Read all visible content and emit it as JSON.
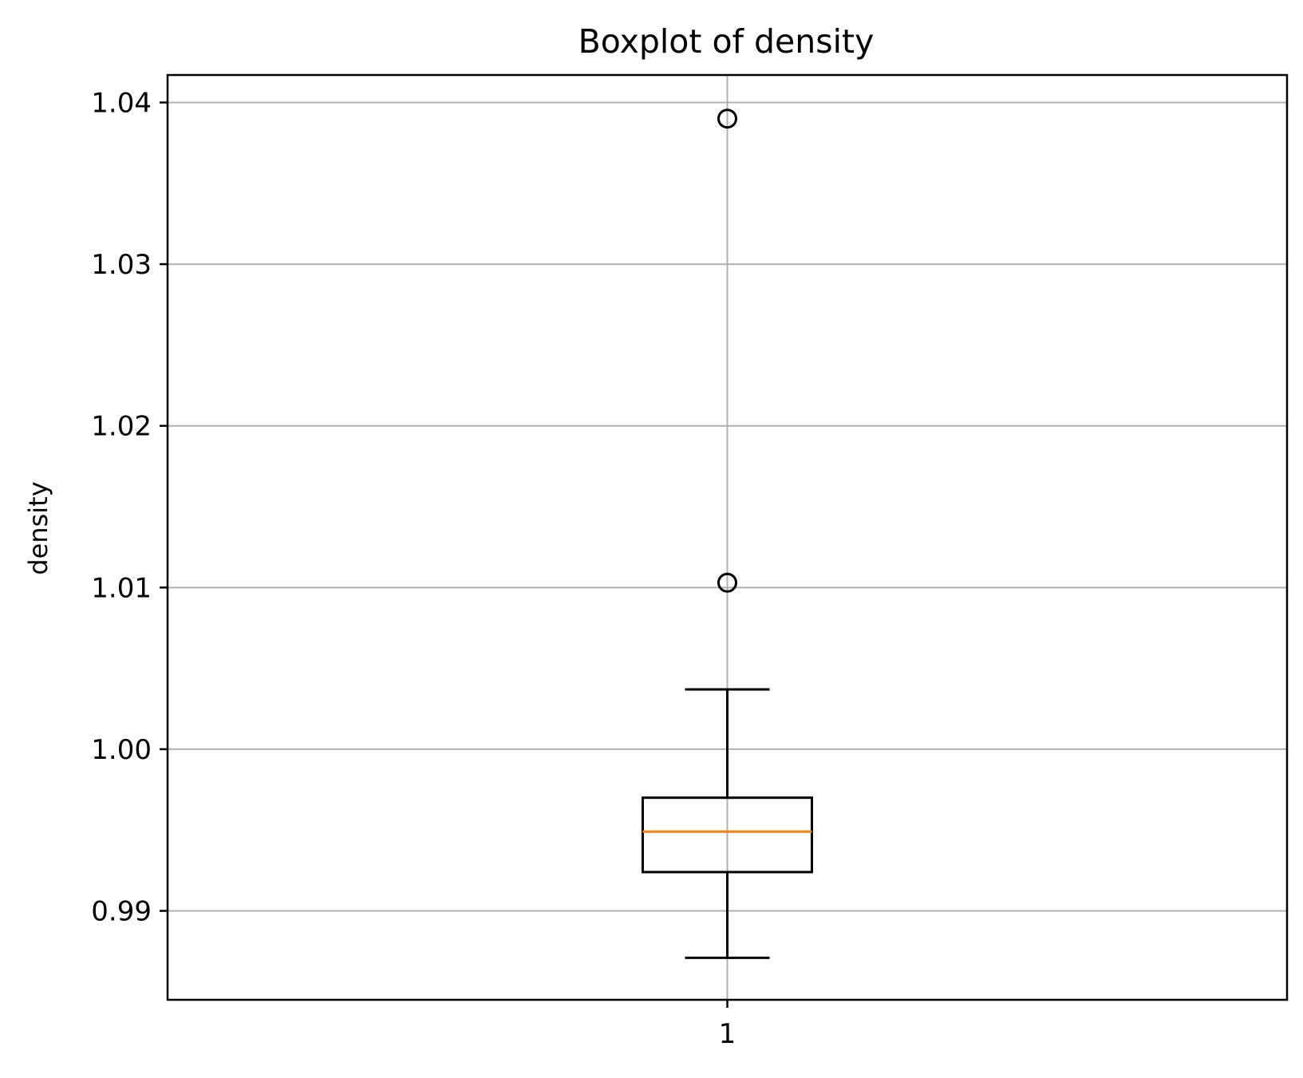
{
  "chart_data": {
    "type": "boxplot",
    "title": "Boxplot of density",
    "xlabel": "",
    "ylabel": "density",
    "categories": [
      "1"
    ],
    "ylim": [
      0.9845,
      1.0417
    ],
    "yticks": [
      "0.99",
      "1.00",
      "1.01",
      "1.02",
      "1.03",
      "1.04"
    ],
    "yticks_values": [
      0.99,
      1.0,
      1.01,
      1.02,
      1.03,
      1.04
    ],
    "grid": true,
    "boxes": [
      {
        "category": "1",
        "whisker_low": 0.9871,
        "q1": 0.9924,
        "median": 0.9949,
        "q3": 0.997,
        "whisker_high": 1.0037,
        "outliers": [
          1.0103,
          1.039
        ]
      }
    ],
    "colors": {
      "box": "#000000",
      "median": "#ff7f0e",
      "grid": "#b0b0b0",
      "outlier": "#000000"
    }
  }
}
